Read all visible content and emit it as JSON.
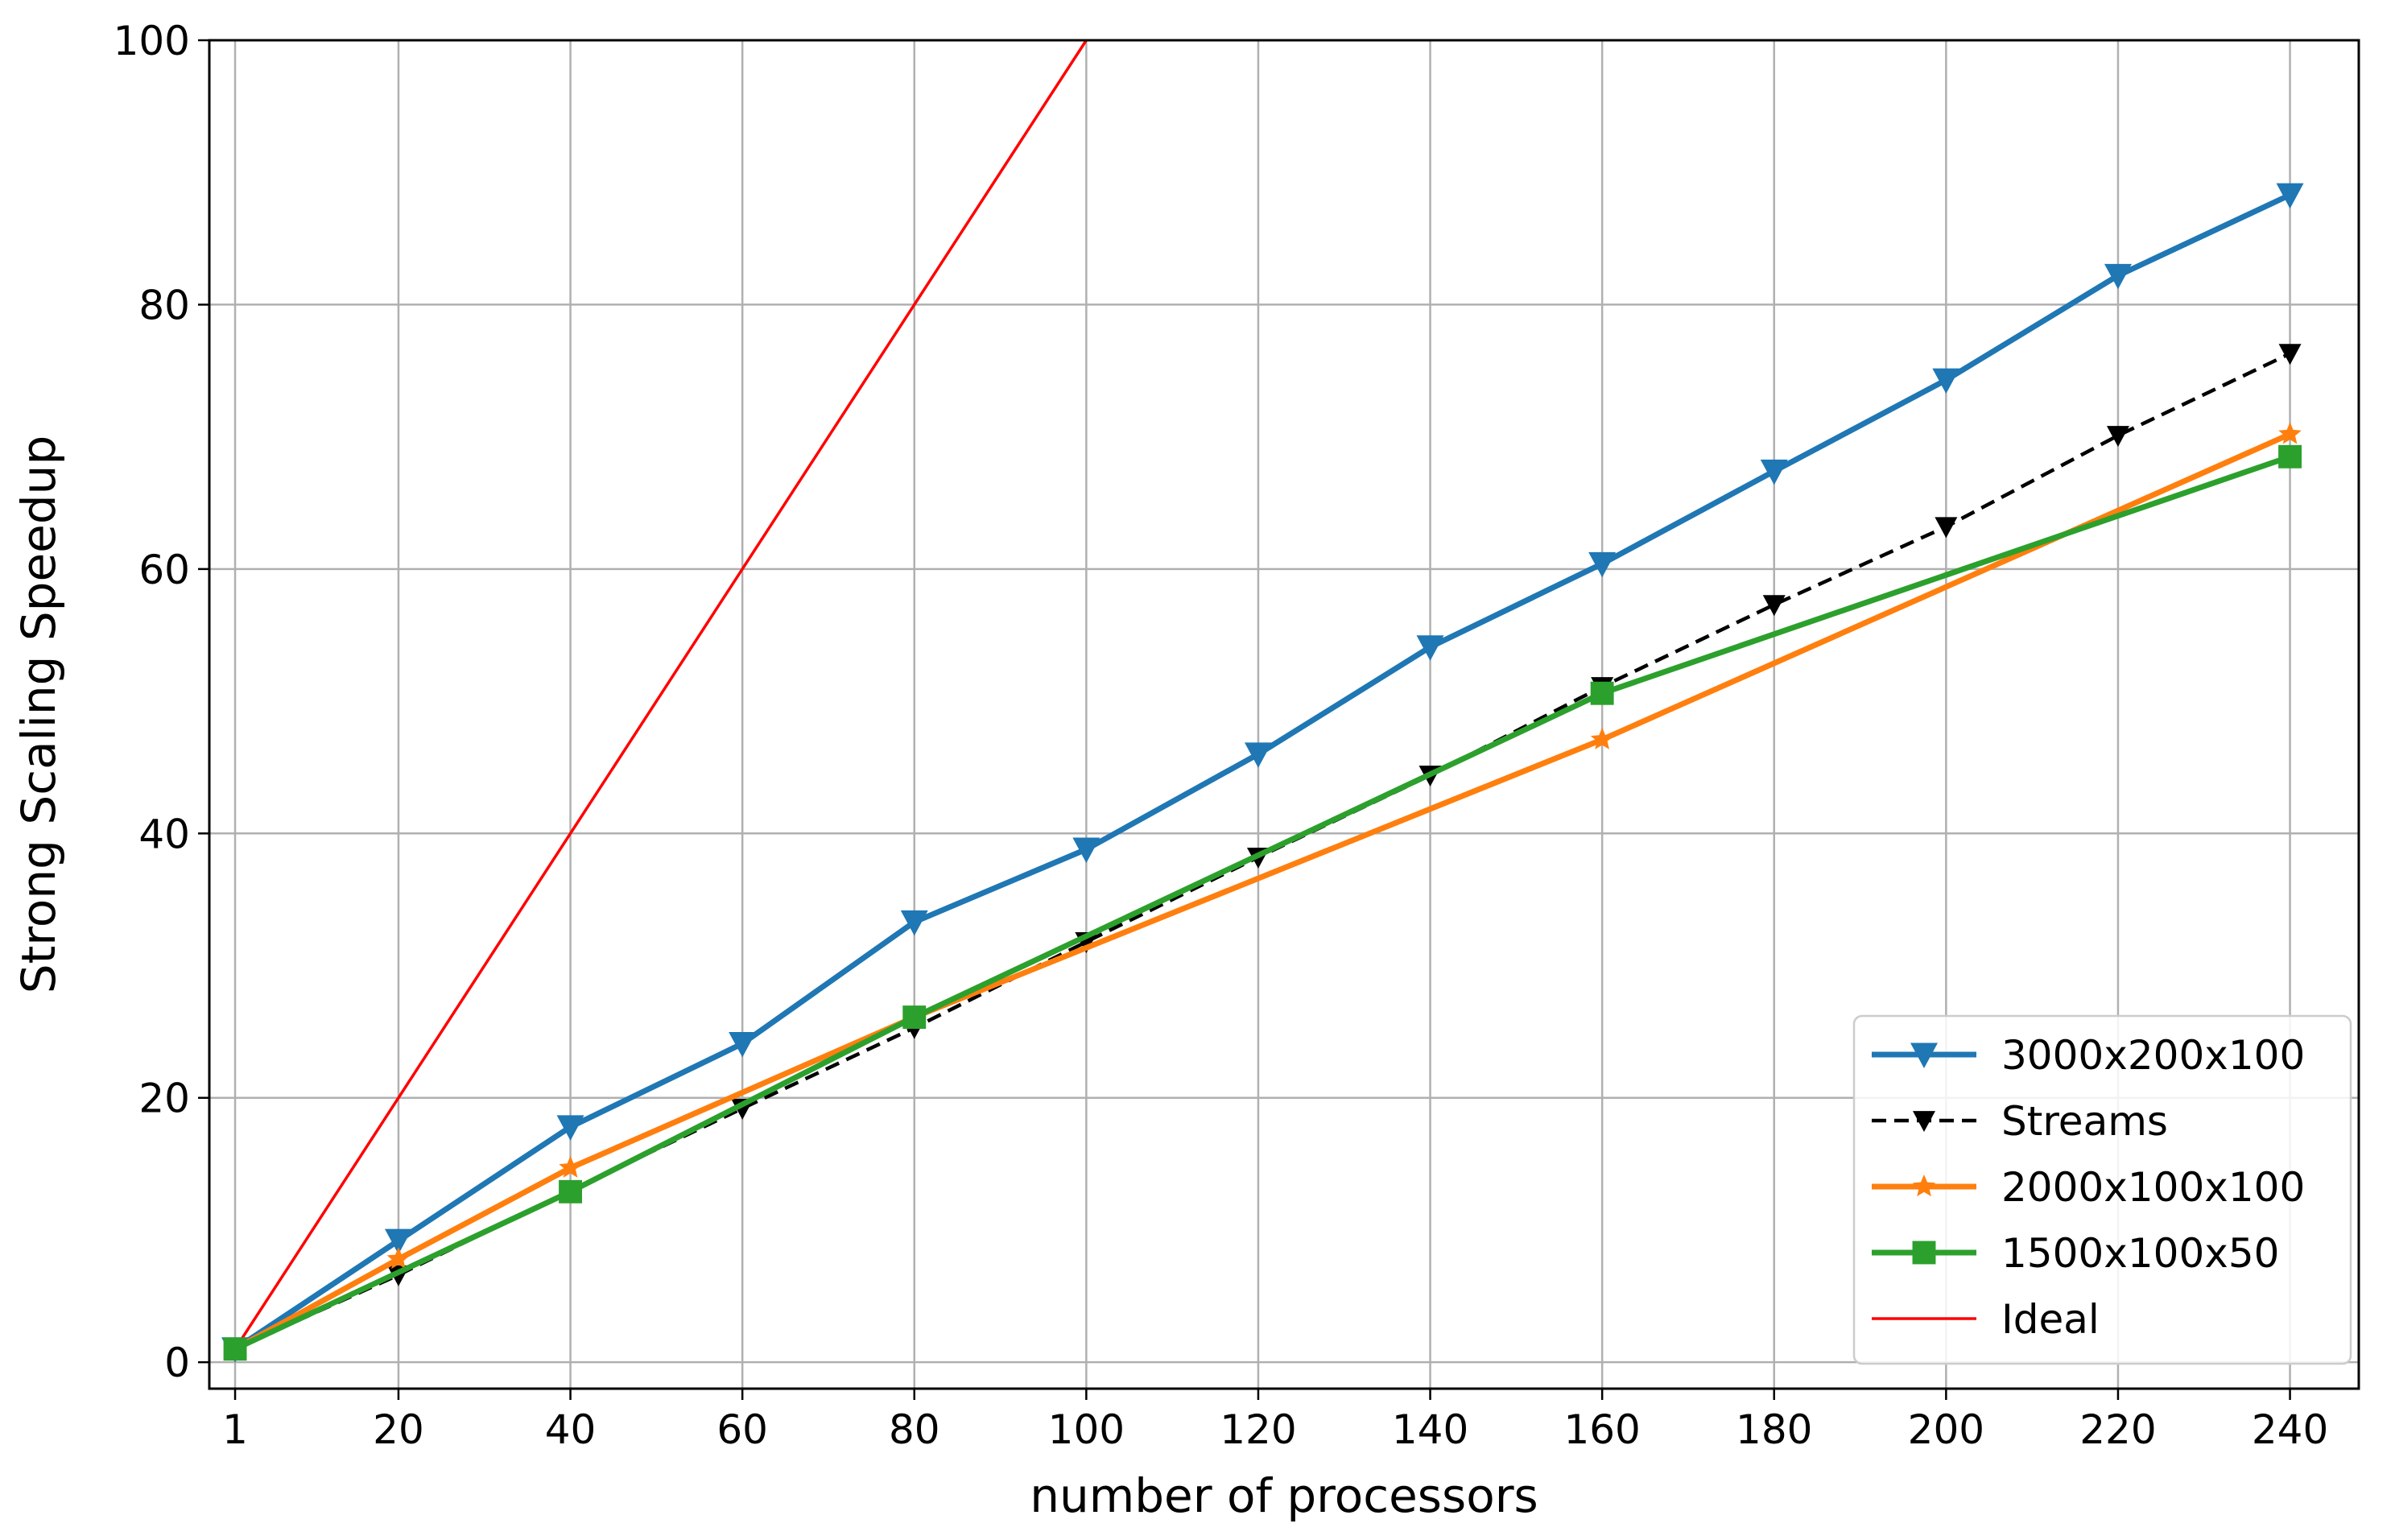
{
  "chart_data": {
    "type": "line",
    "xlabel": "number of processors",
    "ylabel": "Strong Scaling Speedup",
    "xlim": [
      -2,
      248
    ],
    "ylim": [
      -2,
      100
    ],
    "x_ticks": [
      1,
      20,
      40,
      60,
      80,
      100,
      120,
      140,
      160,
      180,
      200,
      220,
      240
    ],
    "y_ticks": [
      0,
      20,
      40,
      60,
      80,
      100
    ],
    "grid": true,
    "legend_position": "bottom-right",
    "series": [
      {
        "name": "3000x200x100",
        "color": "#1f77b4",
        "marker": "triangle-down",
        "line_style": "solid",
        "x": [
          1,
          20,
          40,
          60,
          80,
          100,
          120,
          140,
          160,
          180,
          200,
          220,
          240
        ],
        "y": [
          1,
          9.2,
          17.8,
          24.1,
          33.3,
          38.8,
          46.0,
          54.1,
          60.4,
          67.4,
          74.3,
          82.2,
          88.3
        ]
      },
      {
        "name": "Streams",
        "color": "#000000",
        "marker": "triangle-down",
        "line_style": "dashed",
        "x": [
          1,
          20,
          40,
          60,
          80,
          100,
          120,
          140,
          160,
          180,
          200,
          220,
          240
        ],
        "y": [
          1,
          6.6,
          13.0,
          19.2,
          25.3,
          31.8,
          38.2,
          44.4,
          51.1,
          57.3,
          63.2,
          70.1,
          76.3
        ]
      },
      {
        "name": "2000x100x100",
        "color": "#ff7f0e",
        "marker": "star",
        "line_style": "solid",
        "x": [
          1,
          20,
          40,
          80,
          160,
          240
        ],
        "y": [
          1,
          7.8,
          14.7,
          26.1,
          47.1,
          70.2
        ]
      },
      {
        "name": "1500x100x50",
        "color": "#2ca02c",
        "marker": "square",
        "line_style": "solid",
        "x": [
          1,
          40,
          80,
          160,
          240
        ],
        "y": [
          1,
          12.9,
          26.1,
          50.6,
          68.5
        ]
      },
      {
        "name": "Ideal",
        "color": "#ff0000",
        "marker": "none",
        "line_style": "solid",
        "x": [
          1,
          100
        ],
        "y": [
          1,
          100
        ]
      }
    ]
  }
}
